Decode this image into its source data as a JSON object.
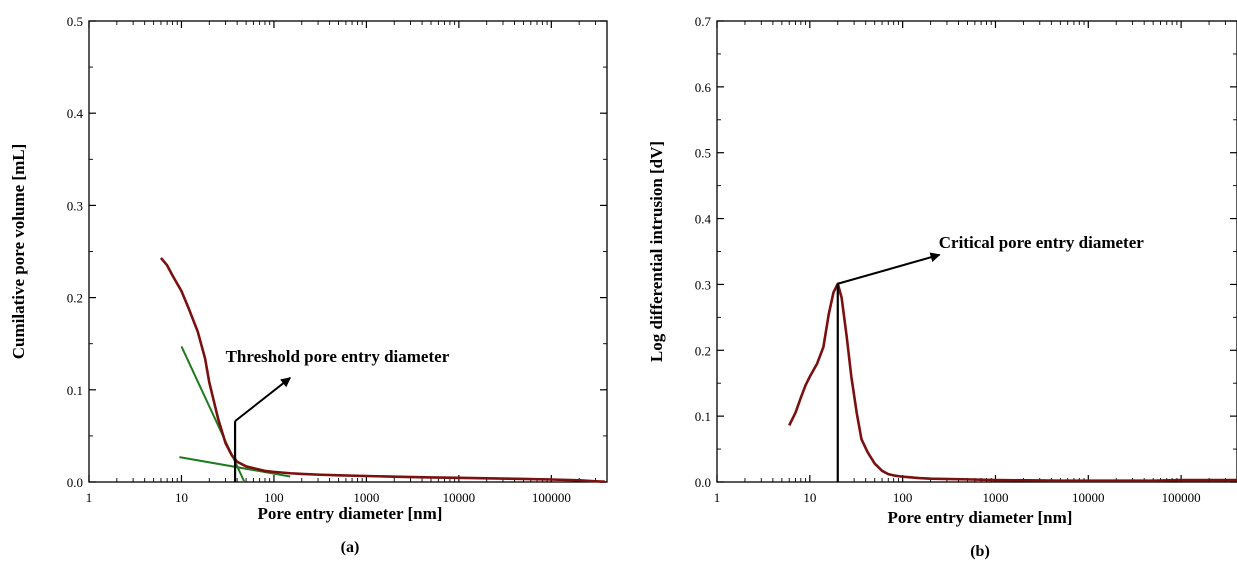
{
  "chart_data": [
    {
      "type": "line",
      "panel_label": "(a)",
      "xlabel": "Pore entry diameter [nm]",
      "ylabel": "Cumilative pore volume [mL]",
      "xscale": "log",
      "xlim": [
        1,
        400000
      ],
      "ylim": [
        0,
        0.5
      ],
      "xticks": [
        1,
        10,
        100,
        1000,
        10000,
        100000
      ],
      "xtick_labels": [
        "1",
        "10",
        "100",
        "1000",
        "10000",
        "100000"
      ],
      "yticks": [
        0,
        0.1,
        0.2,
        0.3,
        0.4,
        0.5
      ],
      "ytick_labels": [
        "0.0",
        "0.1",
        "0.2",
        "0.3",
        "0.4",
        "0.5"
      ],
      "colors": {
        "curve": "#7a1010",
        "tangent": "#1f7a1f",
        "marker": "#000000"
      },
      "series": [
        {
          "x": [
            6,
            7,
            8,
            10,
            12,
            15,
            18,
            20,
            25,
            30,
            35,
            40,
            50,
            60,
            80,
            100,
            150,
            200,
            300,
            500,
            1000,
            2000,
            5000,
            10000,
            20000,
            50000,
            100000,
            200000,
            300000,
            380000
          ],
          "y": [
            0.243,
            0.235,
            0.224,
            0.207,
            0.188,
            0.163,
            0.134,
            0.108,
            0.068,
            0.042,
            0.029,
            0.022,
            0.017,
            0.015,
            0.012,
            0.011,
            0.0095,
            0.0088,
            0.008,
            0.0072,
            0.0065,
            0.0058,
            0.005,
            0.0045,
            0.004,
            0.0033,
            0.0027,
            0.0018,
            0.0008,
            0.0003
          ]
        }
      ],
      "tangents": [
        {
          "x": [
            10,
            48
          ],
          "y": [
            0.147,
            0.0
          ]
        },
        {
          "x": [
            9.5,
            150
          ],
          "y": [
            0.027,
            0.006
          ]
        }
      ],
      "marker_line": {
        "x": 38,
        "y": [
          0,
          0.066
        ]
      },
      "annotation": {
        "text": "Threshold pore entry diameter",
        "arrow_from": [
          38,
          0.066
        ],
        "arrow_to": [
          150,
          0.113
        ],
        "text_at": [
          30,
          0.13
        ]
      }
    },
    {
      "type": "line",
      "panel_label": "(b)",
      "xlabel": "Pore entry diameter [nm]",
      "ylabel": "Log differential intrusion [dV]",
      "xscale": "log",
      "xlim": [
        1,
        400000
      ],
      "ylim": [
        0,
        0.7
      ],
      "xticks": [
        1,
        10,
        100,
        1000,
        10000,
        100000
      ],
      "xtick_labels": [
        "1",
        "10",
        "100",
        "1000",
        "10000",
        "100000"
      ],
      "yticks": [
        0,
        0.1,
        0.2,
        0.3,
        0.4,
        0.5,
        0.6,
        0.7
      ],
      "ytick_labels": [
        "0.0",
        "0.1",
        "0.2",
        "0.3",
        "0.4",
        "0.5",
        "0.6",
        "0.7"
      ],
      "colors": {
        "curve": "#7a1010",
        "marker": "#000000"
      },
      "series": [
        {
          "x": [
            6,
            7,
            8,
            9,
            10,
            12,
            14,
            16,
            18,
            20,
            22,
            25,
            28,
            32,
            36,
            42,
            50,
            60,
            70,
            80,
            100,
            150,
            200,
            500,
            1000,
            5000,
            10000,
            50000,
            100000,
            200000,
            400000
          ],
          "y": [
            0.086,
            0.105,
            0.128,
            0.147,
            0.16,
            0.18,
            0.205,
            0.255,
            0.288,
            0.301,
            0.28,
            0.22,
            0.16,
            0.105,
            0.065,
            0.045,
            0.028,
            0.017,
            0.012,
            0.01,
            0.008,
            0.006,
            0.005,
            0.004,
            0.003,
            0.002,
            0.002,
            0.002,
            0.003,
            0.003,
            0.003
          ]
        }
      ],
      "marker_line": {
        "x": 20,
        "y": [
          0,
          0.301
        ]
      },
      "annotation": {
        "text": "Critical pore entry diameter",
        "arrow_from": [
          20,
          0.301
        ],
        "arrow_to": [
          250,
          0.345
        ],
        "text_at": [
          245,
          0.355
        ]
      }
    }
  ]
}
